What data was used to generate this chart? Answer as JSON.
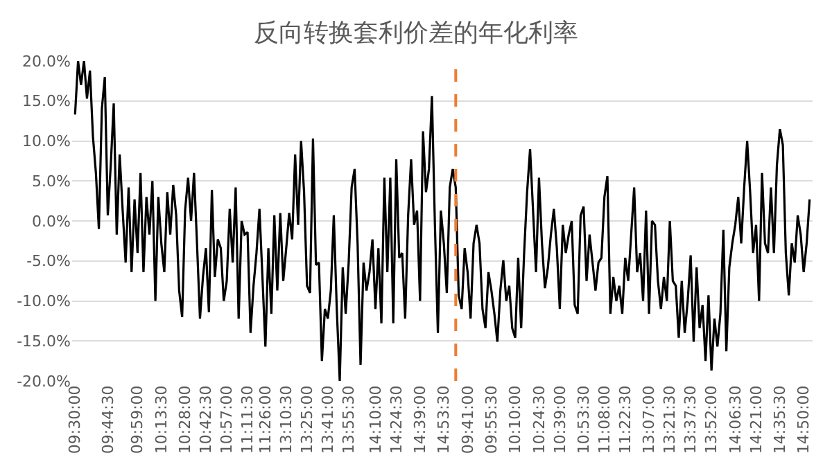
{
  "chart_data": {
    "type": "line",
    "title": "反向转换套利价差的年化利率",
    "categories": [
      "09:30:00",
      null,
      null,
      null,
      null,
      null,
      null,
      null,
      null,
      null,
      null,
      "09:44:30",
      null,
      null,
      null,
      null,
      null,
      null,
      null,
      null,
      null,
      "09:59:00",
      null,
      null,
      null,
      null,
      null,
      null,
      null,
      "10:13:30",
      null,
      null,
      null,
      null,
      null,
      null,
      null,
      "10:28:00",
      null,
      null,
      null,
      null,
      null,
      null,
      "10:42:30",
      null,
      null,
      null,
      null,
      null,
      null,
      "10:57:00",
      null,
      null,
      null,
      null,
      null,
      null,
      "11:11:30",
      null,
      null,
      null,
      null,
      null,
      "11:26:00",
      null,
      null,
      null,
      null,
      null,
      null,
      "13:10:30",
      null,
      null,
      null,
      null,
      null,
      null,
      "13:25:00",
      null,
      null,
      null,
      null,
      null,
      null,
      "13:41:00",
      null,
      null,
      null,
      null,
      null,
      null,
      "13:55:30",
      null,
      null,
      null,
      null,
      null,
      null,
      null,
      null,
      "14:10:00",
      null,
      null,
      null,
      null,
      null,
      null,
      "14:24:30",
      null,
      null,
      null,
      null,
      null,
      null,
      null,
      "14:39:00",
      null,
      null,
      null,
      null,
      null,
      null,
      null,
      "14:53:30",
      null,
      null,
      null,
      null,
      null,
      null,
      null,
      "09:41:00",
      null,
      null,
      null,
      null,
      null,
      null,
      null,
      "09:55:30",
      null,
      null,
      null,
      null,
      null,
      null,
      null,
      "10:10:00",
      null,
      null,
      null,
      null,
      null,
      null,
      null,
      "10:24:30",
      null,
      null,
      null,
      null,
      null,
      null,
      "10:39:00",
      null,
      null,
      null,
      null,
      null,
      null,
      null,
      "10:53:30",
      null,
      null,
      null,
      null,
      null,
      null,
      "11:08:00",
      null,
      null,
      null,
      null,
      null,
      null,
      "11:22:30",
      null,
      null,
      null,
      null,
      null,
      null,
      null,
      "13:07:00",
      null,
      null,
      null,
      null,
      null,
      null,
      "13:21:30",
      null,
      null,
      null,
      null,
      null,
      null,
      "13:37:30",
      null,
      null,
      null,
      null,
      null,
      null,
      "13:52:00",
      null,
      null,
      null,
      null,
      null,
      null,
      null,
      "14:06:30",
      null,
      null,
      null,
      null,
      null,
      null,
      "14:21:00",
      null,
      null,
      null,
      null,
      null,
      null,
      null,
      "14:35:30",
      null,
      null,
      null,
      null,
      null,
      null,
      null,
      "14:50:00",
      null,
      null
    ],
    "series": [
      {
        "color": "#000000",
        "values": [
          13.3,
          20,
          17,
          20,
          15.3,
          18.8,
          10.6,
          6,
          -1,
          14,
          18,
          0.7,
          7,
          14.7,
          -1.7,
          8.3,
          1.3,
          -5.2,
          4.2,
          -6.4,
          2.7,
          -4,
          6,
          -6.4,
          3,
          -1.7,
          5,
          -10,
          3,
          -2.8,
          -6.4,
          3.6,
          -1.7,
          4.5,
          0.7,
          -8.7,
          -12,
          1.3,
          5.4,
          0,
          6,
          -2.8,
          -12.2,
          -7,
          -3.4,
          -11.4,
          3.9,
          -7,
          -2.3,
          -3.4,
          -10,
          -7.5,
          1.5,
          -5.2,
          4.2,
          -12.2,
          0,
          -1.7,
          -1.4,
          -14,
          -8.1,
          -4,
          1.5,
          -7,
          -15.7,
          -3.4,
          -11.6,
          0.7,
          -8.7,
          1,
          -7.5,
          -3.4,
          1,
          -2.3,
          8.3,
          -0.5,
          10,
          3.6,
          -8.1,
          -9,
          10.3,
          -5.5,
          -5.2,
          -17.5,
          -11,
          -12.2,
          -8.7,
          0.7,
          -11,
          -20,
          -5.8,
          -11.6,
          -5.2,
          4.2,
          6.5,
          -2.8,
          -18,
          -5.2,
          -8.7,
          -6.4,
          -2.3,
          -11,
          -3.4,
          -12.8,
          5.4,
          -6.4,
          5.4,
          -12.8,
          7.7,
          -4.6,
          -4,
          -12.2,
          0.7,
          7.7,
          -0.5,
          1.3,
          -10,
          11.2,
          3.6,
          6.5,
          15.6,
          -0.5,
          -14,
          1.3,
          -2.8,
          -9,
          4.2,
          6.5,
          4.2,
          -9.3,
          -11,
          -3.4,
          -6.4,
          -12.2,
          -2.8,
          -0.5,
          -2.8,
          -11,
          -13.4,
          -6.4,
          -8.7,
          -11.6,
          -15.1,
          -8.7,
          -4.9,
          -10,
          -8.1,
          -13.4,
          -14.6,
          -4.6,
          -13.4,
          -4,
          3.6,
          9,
          1.3,
          -6.4,
          5.4,
          -2.8,
          -8.4,
          -5.8,
          -1.7,
          1.5,
          -3.4,
          -11,
          -0.5,
          -4,
          -1.7,
          0,
          -10.5,
          -11.6,
          0.7,
          1.8,
          -7.5,
          -1.7,
          -5.2,
          -8.7,
          -5.2,
          -4.6,
          3,
          5.6,
          -11.6,
          -7,
          -10,
          -8.1,
          -11.6,
          -4.6,
          -7.5,
          -1.7,
          4.2,
          -6.4,
          -4,
          -10,
          1.3,
          -11.6,
          0,
          -0.5,
          -7.5,
          -11,
          -7,
          -10,
          0,
          -7.5,
          -8.1,
          -14.6,
          -7.5,
          -14,
          -10,
          -4.3,
          -15.1,
          -5.8,
          -13.4,
          -10.5,
          -17.5,
          -9.3,
          -18.7,
          -12.2,
          -15.7,
          -11.6,
          -1.1,
          -16.3,
          -5.8,
          -2.8,
          -0.5,
          3,
          -2.8,
          4.2,
          10,
          3.6,
          -4,
          -0.5,
          -10,
          6,
          -2.8,
          -4,
          4.2,
          -4,
          7,
          11.5,
          9.5,
          -4,
          -9.3,
          -2.8,
          -5.2,
          0.7,
          -1.7,
          -6.4,
          -2.8,
          2.7
        ]
      }
    ],
    "ylim": [
      -20,
      20
    ],
    "yticks": [
      {
        "value": -20,
        "label": "-20.0%"
      },
      {
        "value": -15,
        "label": "-15.0%"
      },
      {
        "value": -10,
        "label": "-10.0%"
      },
      {
        "value": -5,
        "label": "-5.0%"
      },
      {
        "value": 0,
        "label": "0.0%"
      },
      {
        "value": 5,
        "label": "5.0%"
      },
      {
        "value": 10,
        "label": "10.0%"
      },
      {
        "value": 15,
        "label": "15.0%"
      },
      {
        "value": 20,
        "label": "20.0%"
      }
    ],
    "grid": "y"
  }
}
